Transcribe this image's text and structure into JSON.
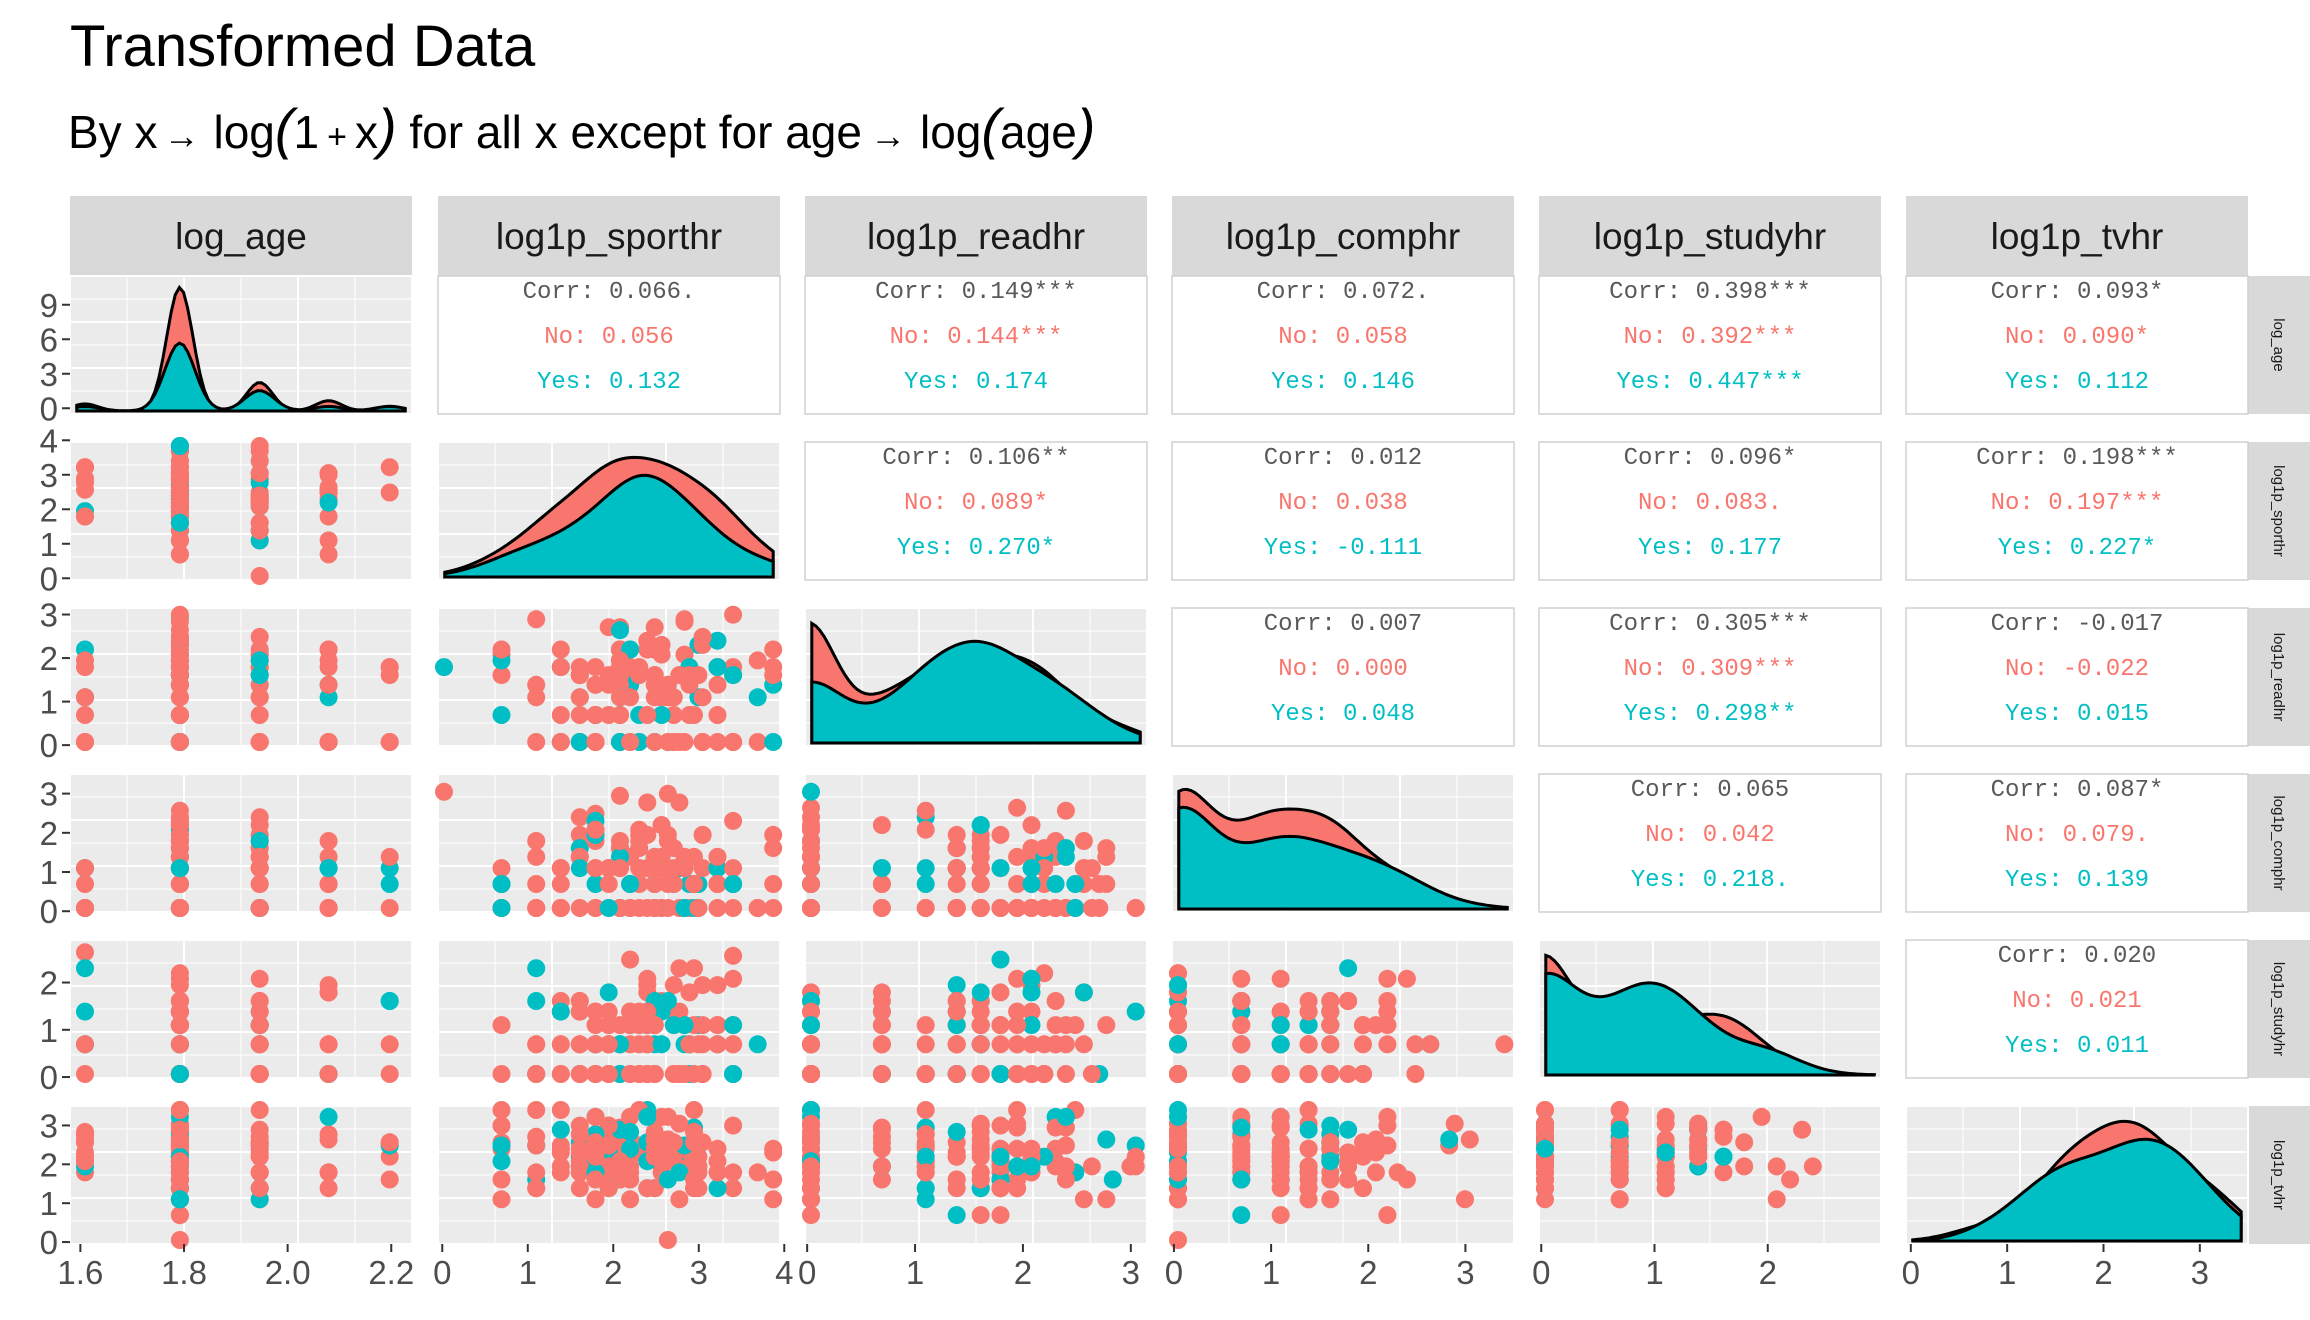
{
  "title": "Transformed Data",
  "subtitle": {
    "prefix": "By ",
    "x1": "x",
    "arrow": "→",
    "log1": "log",
    "paren_open": "(",
    "one": "1",
    "plus": "+",
    "x2": "x",
    "paren_close": ")",
    "mid": " for all x except for age",
    "log2": "log",
    "age": "age"
  },
  "colors": {
    "no": "#F8766D",
    "yes": "#00BFC4",
    "panel_bg": "#EBEBEB",
    "strip_bg": "#D9D9D9",
    "grid": "#FFFFFF",
    "tick_text": "#4D4D4D",
    "corr_text": "#595959"
  },
  "chart_data": {
    "type": "scatter",
    "variables": [
      "log_age",
      "log1p_sporthr",
      "log1p_readhr",
      "log1p_comphr",
      "log1p_studyhr",
      "log1p_tvhr"
    ],
    "groups": [
      "No",
      "Yes"
    ],
    "x_ranges": [
      [
        1.58,
        2.24
      ],
      [
        -0.05,
        3.95
      ],
      [
        -0.02,
        3.15
      ],
      [
        -0.02,
        3.5
      ],
      [
        -0.02,
        3.0
      ],
      [
        -0.05,
        3.5
      ]
    ],
    "y_ranges": [
      [
        -0.5,
        11.5
      ],
      [
        -0.05,
        3.95
      ],
      [
        -0.02,
        3.15
      ],
      [
        -0.02,
        3.5
      ],
      [
        -0.02,
        2.9
      ],
      [
        -0.05,
        3.5
      ]
    ],
    "x_ticks": [
      [
        "1.6",
        "1.8",
        "2.0",
        "2.2"
      ],
      [
        "0",
        "1",
        "2",
        "3",
        "4"
      ],
      [
        "0",
        "1",
        "2",
        "3"
      ],
      [
        "0",
        "1",
        "2",
        "3"
      ],
      [
        "0",
        "1",
        "2"
      ],
      [
        "0",
        "1",
        "2",
        "3"
      ]
    ],
    "y_ticks": [
      [
        "0",
        "3",
        "6",
        "9"
      ],
      [
        "0",
        "1",
        "2",
        "3",
        "4"
      ],
      [
        "0",
        "1",
        "2",
        "3"
      ],
      [
        "0",
        "1",
        "2",
        "3"
      ],
      [
        "0",
        "1",
        "2"
      ],
      [
        "0",
        "1",
        "2",
        "3"
      ]
    ],
    "diagonal_density_peaks": [
      1.79,
      2.45,
      1.5,
      0.0,
      0.05,
      2.4
    ],
    "correlations": [
      {
        "row": "log_age",
        "col": "log1p_sporthr",
        "corr": "Corr: 0.066.",
        "no": "No: 0.056",
        "yes": "Yes: 0.132"
      },
      {
        "row": "log_age",
        "col": "log1p_readhr",
        "corr": "Corr: 0.149***",
        "no": "No: 0.144***",
        "yes": "Yes: 0.174"
      },
      {
        "row": "log_age",
        "col": "log1p_comphr",
        "corr": "Corr: 0.072.",
        "no": "No: 0.058",
        "yes": "Yes: 0.146"
      },
      {
        "row": "log_age",
        "col": "log1p_studyhr",
        "corr": "Corr: 0.398***",
        "no": "No: 0.392***",
        "yes": "Yes: 0.447***"
      },
      {
        "row": "log_age",
        "col": "log1p_tvhr",
        "corr": "Corr: 0.093*",
        "no": "No: 0.090*",
        "yes": "Yes: 0.112"
      },
      {
        "row": "log1p_sporthr",
        "col": "log1p_readhr",
        "corr": "Corr: 0.106**",
        "no": "No: 0.089*",
        "yes": "Yes: 0.270*"
      },
      {
        "row": "log1p_sporthr",
        "col": "log1p_comphr",
        "corr": "Corr: 0.012",
        "no": "No: 0.038",
        "yes": "Yes: -0.111"
      },
      {
        "row": "log1p_sporthr",
        "col": "log1p_studyhr",
        "corr": "Corr: 0.096*",
        "no": "No: 0.083.",
        "yes": "Yes: 0.177"
      },
      {
        "row": "log1p_sporthr",
        "col": "log1p_tvhr",
        "corr": "Corr: 0.198***",
        "no": "No: 0.197***",
        "yes": "Yes: 0.227*"
      },
      {
        "row": "log1p_readhr",
        "col": "log1p_comphr",
        "corr": "Corr: 0.007",
        "no": "No: 0.000",
        "yes": "Yes: 0.048"
      },
      {
        "row": "log1p_readhr",
        "col": "log1p_studyhr",
        "corr": "Corr: 0.305***",
        "no": "No: 0.309***",
        "yes": "Yes: 0.298**"
      },
      {
        "row": "log1p_readhr",
        "col": "log1p_tvhr",
        "corr": "Corr: -0.017",
        "no": "No: -0.022",
        "yes": "Yes: 0.015"
      },
      {
        "row": "log1p_comphr",
        "col": "log1p_studyhr",
        "corr": "Corr: 0.065",
        "no": "No: 0.042",
        "yes": "Yes: 0.218."
      },
      {
        "row": "log1p_comphr",
        "col": "log1p_tvhr",
        "corr": "Corr: 0.087*",
        "no": "No: 0.079.",
        "yes": "Yes: 0.139"
      },
      {
        "row": "log1p_studyhr",
        "col": "log1p_tvhr",
        "corr": "Corr: 0.020",
        "no": "No: 0.021",
        "yes": "Yes: 0.011"
      }
    ]
  }
}
